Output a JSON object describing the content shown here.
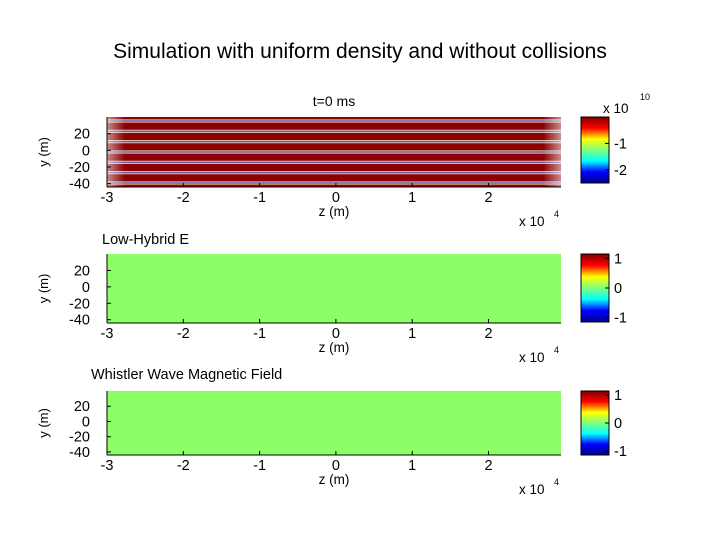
{
  "slide_title": "Simulation with uniform density and without collisions",
  "panel_labels": [
    "Low-Hybrid E",
    "Whistler Wave Magnetic Field"
  ],
  "chart_data": [
    {
      "type": "heatmap",
      "title": "t=0 ms",
      "xlabel": "z (m)",
      "ylabel": "y (m)",
      "x_tick_labels": [
        "-3",
        "-2",
        "-1",
        "0",
        "1",
        "2"
      ],
      "x_ticks": [
        -3,
        -2,
        -1,
        0,
        1,
        2
      ],
      "x_exponent_label": "x 10",
      "x_exponent": "4",
      "xlim": [
        -3,
        2.95
      ],
      "y_tick_labels": [
        "20",
        "0",
        "-20",
        "-40"
      ],
      "y_ticks": [
        20,
        0,
        -20,
        -40
      ],
      "ylim": [
        -44,
        40
      ],
      "colorbar": {
        "ticks": [
          -1,
          -2
        ],
        "tick_labels": [
          "-1",
          "-2"
        ],
        "clim": [
          -2.5,
          0
        ],
        "exponent_label": "x 10",
        "exponent": "10"
      },
      "field": "horizontal stripes, values near 0 (dark red) with 7 thin bands near -2.5 (dark blue), edges brighter near z = ±3"
    },
    {
      "type": "heatmap",
      "title": "Low-Hybrid E",
      "xlabel": "z (m)",
      "ylabel": "y (m)",
      "x_tick_labels": [
        "-3",
        "-2",
        "-1",
        "0",
        "1",
        "2"
      ],
      "x_ticks": [
        -3,
        -2,
        -1,
        0,
        1,
        2
      ],
      "x_exponent_label": "x 10",
      "x_exponent": "4",
      "xlim": [
        -3,
        2.95
      ],
      "y_tick_labels": [
        "20",
        "0",
        "-20",
        "-40"
      ],
      "y_ticks": [
        20,
        0,
        -20,
        -40
      ],
      "ylim": [
        -44,
        40
      ],
      "colorbar": {
        "ticks": [
          1,
          0,
          -1
        ],
        "tick_labels": [
          "1",
          "0",
          "-1"
        ],
        "clim": [
          -1.15,
          1.15
        ]
      },
      "field_value": 0
    },
    {
      "type": "heatmap",
      "title": "Whistler Wave Magnetic Field",
      "xlabel": "z (m)",
      "ylabel": "y (m)",
      "x_tick_labels": [
        "-3",
        "-2",
        "-1",
        "0",
        "1",
        "2"
      ],
      "x_ticks": [
        -3,
        -2,
        -1,
        0,
        1,
        2
      ],
      "x_exponent_label": "x 10",
      "x_exponent": "4",
      "xlim": [
        -3,
        2.95
      ],
      "y_tick_labels": [
        "20",
        "0",
        "-20",
        "-40"
      ],
      "y_ticks": [
        20,
        0,
        -20,
        -40
      ],
      "ylim": [
        -44,
        40
      ],
      "colorbar": {
        "ticks": [
          1,
          0,
          -1
        ],
        "tick_labels": [
          "1",
          "0",
          "-1"
        ],
        "clim": [
          -1.15,
          1.15
        ]
      },
      "field_value": 0
    }
  ],
  "colors": {
    "field_zero": "#8cff66",
    "jet_dark_red": "#8b0000",
    "jet_dark_blue": "#00008f",
    "jet_stops": [
      "#00008f",
      "#0000ff",
      "#00ffff",
      "#7fff7f",
      "#ffff00",
      "#ff0000",
      "#800000"
    ]
  }
}
